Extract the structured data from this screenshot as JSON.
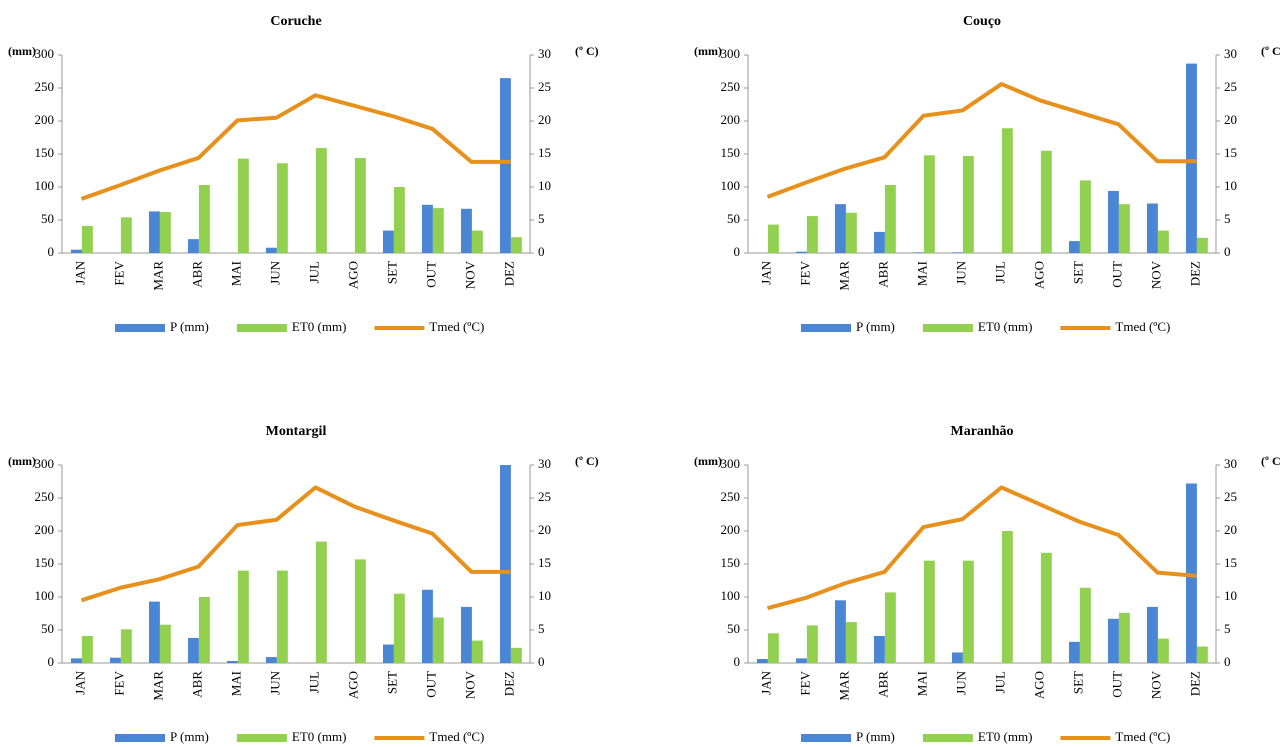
{
  "chart_data": [
    {
      "type": "bar",
      "title": "Coruche",
      "y_label": "(mm)",
      "y2_label": "(º C)",
      "categories": [
        "JAN",
        "FEV",
        "MAR",
        "ABR",
        "MAI",
        "JUN",
        "JUL",
        "AGO",
        "SET",
        "OUT",
        "NOV",
        "DEZ"
      ],
      "series": [
        {
          "name": "P (mm)",
          "color": "#4a86d4",
          "type": "bar",
          "values": [
            5,
            0,
            63,
            21,
            0,
            8,
            0,
            0,
            34,
            73,
            67,
            265
          ]
        },
        {
          "name": "ET0 (mm)",
          "color": "#92d050",
          "type": "bar",
          "values": [
            41,
            54,
            62,
            103,
            143,
            136,
            159,
            144,
            100,
            68,
            34,
            24
          ]
        },
        {
          "name": "Tmed (ºC)",
          "color": "#e8901c",
          "type": "line",
          "axis": "y2",
          "values": [
            8.2,
            10.3,
            12.5,
            14.4,
            20.1,
            20.5,
            23.9,
            22.3,
            20.7,
            18.8,
            13.8,
            13.8
          ]
        }
      ],
      "ylim": [
        0,
        300
      ],
      "yticks": [
        0,
        50,
        100,
        150,
        200,
        250,
        300
      ],
      "y2lim": [
        0,
        30
      ],
      "y2ticks": [
        0,
        5,
        10,
        15,
        20,
        25,
        30
      ],
      "grid": false,
      "legend": "bottom"
    },
    {
      "type": "bar",
      "title": "Couço",
      "y_label": "(mm)",
      "y2_label": "(º C)",
      "categories": [
        "JAN",
        "FEV",
        "MAR",
        "ABR",
        "MAI",
        "JUN",
        "JUL",
        "AGO",
        "SET",
        "OUT",
        "NOV",
        "DEZ"
      ],
      "series": [
        {
          "name": "P (mm)",
          "color": "#4a86d4",
          "type": "bar",
          "values": [
            0,
            2,
            74,
            32,
            1,
            1,
            0,
            0,
            18,
            94,
            75,
            287
          ]
        },
        {
          "name": "ET0 (mm)",
          "color": "#92d050",
          "type": "bar",
          "values": [
            43,
            56,
            61,
            103,
            148,
            147,
            189,
            155,
            110,
            74,
            34,
            23
          ]
        },
        {
          "name": "Tmed (ºC)",
          "color": "#e8901c",
          "type": "line",
          "axis": "y2",
          "values": [
            8.5,
            10.7,
            12.8,
            14.5,
            20.8,
            21.6,
            25.6,
            23.1,
            21.3,
            19.5,
            13.9,
            13.9
          ]
        }
      ],
      "ylim": [
        0,
        300
      ],
      "yticks": [
        0,
        50,
        100,
        150,
        200,
        250,
        300
      ],
      "y2lim": [
        0,
        30
      ],
      "y2ticks": [
        0,
        5,
        10,
        15,
        20,
        25,
        30
      ],
      "grid": false,
      "legend": "bottom"
    },
    {
      "type": "bar",
      "title": "Montargil",
      "y_label": "(mm)",
      "y2_label": "(º C)",
      "categories": [
        "JAN",
        "FEV",
        "MAR",
        "ABR",
        "MAI",
        "JUN",
        "JUL",
        "AGO",
        "SET",
        "OUT",
        "NOV",
        "DEZ"
      ],
      "series": [
        {
          "name": "P (mm)",
          "color": "#4a86d4",
          "type": "bar",
          "values": [
            7,
            8,
            93,
            38,
            3,
            9,
            0,
            0,
            28,
            111,
            85,
            300
          ]
        },
        {
          "name": "ET0 (mm)",
          "color": "#92d050",
          "type": "bar",
          "values": [
            41,
            51,
            58,
            100,
            140,
            140,
            184,
            157,
            105,
            69,
            34,
            23
          ]
        },
        {
          "name": "Tmed (ºC)",
          "color": "#e8901c",
          "type": "line",
          "axis": "y2",
          "values": [
            9.5,
            11.4,
            12.7,
            14.6,
            20.9,
            21.7,
            26.6,
            23.7,
            21.6,
            19.6,
            13.8,
            13.8
          ]
        }
      ],
      "ylim": [
        0,
        300
      ],
      "yticks": [
        0,
        50,
        100,
        150,
        200,
        250,
        300
      ],
      "y2lim": [
        0,
        30
      ],
      "y2ticks": [
        0,
        5,
        10,
        15,
        20,
        25,
        30
      ],
      "grid": false,
      "legend": "bottom"
    },
    {
      "type": "bar",
      "title": "Maranhão",
      "y_label": "(mm)",
      "y2_label": "(º C)",
      "categories": [
        "JAN",
        "FEV",
        "MAR",
        "ABR",
        "MAI",
        "JUN",
        "JUL",
        "AGO",
        "SET",
        "OUT",
        "NOV",
        "DEZ"
      ],
      "series": [
        {
          "name": "P (mm)",
          "color": "#4a86d4",
          "type": "bar",
          "values": [
            6,
            7,
            95,
            41,
            0,
            16,
            0,
            0,
            32,
            67,
            85,
            272
          ]
        },
        {
          "name": "ET0 (mm)",
          "color": "#92d050",
          "type": "bar",
          "values": [
            45,
            57,
            62,
            107,
            155,
            155,
            200,
            167,
            114,
            76,
            37,
            25
          ]
        },
        {
          "name": "Tmed (ºC)",
          "color": "#e8901c",
          "type": "line",
          "axis": "y2",
          "values": [
            8.3,
            9.9,
            12.1,
            13.8,
            20.6,
            21.8,
            26.6,
            24.0,
            21.4,
            19.4,
            13.7,
            13.2
          ]
        }
      ],
      "ylim": [
        0,
        300
      ],
      "yticks": [
        0,
        50,
        100,
        150,
        200,
        250,
        300
      ],
      "y2lim": [
        0,
        30
      ],
      "y2ticks": [
        0,
        5,
        10,
        15,
        20,
        25,
        30
      ],
      "grid": false,
      "legend": "bottom"
    }
  ]
}
